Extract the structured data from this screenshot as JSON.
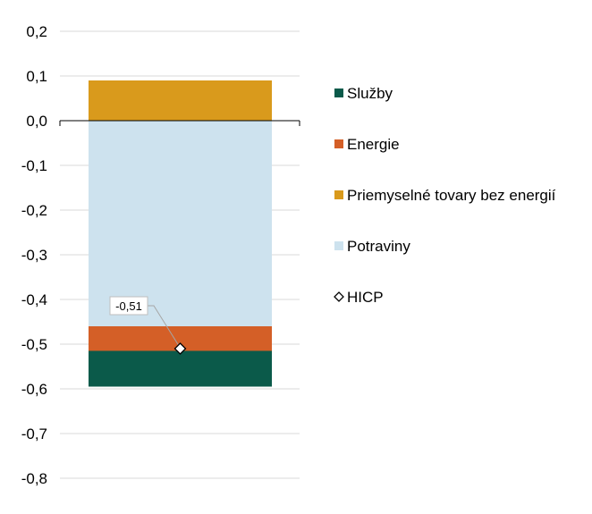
{
  "chart_data": {
    "type": "bar",
    "stacked": true,
    "ylim": [
      -0.8,
      0.2
    ],
    "ytick_step": 0.1,
    "yticks": [
      "0,2",
      "0,1",
      "0,0",
      "-0,1",
      "-0,2",
      "-0,3",
      "-0,4",
      "-0,5",
      "-0,6",
      "-0,7",
      "-0,8"
    ],
    "grid": true,
    "legend_position": "right",
    "series": [
      {
        "name": "Služby",
        "value": -0.08,
        "color": "#0b5a4a"
      },
      {
        "name": "Energie",
        "value": -0.055,
        "color": "#d45f27"
      },
      {
        "name": "Priemyselné tovary bez energií",
        "value": 0.09,
        "color": "#d99a1c"
      },
      {
        "name": "Potraviny",
        "value": -0.46,
        "color": "#cde2ee"
      }
    ],
    "stack_order_positive": [
      "Priemyselné tovary bez energií"
    ],
    "stack_order_negative": [
      "Potraviny",
      "Energie",
      "Služby"
    ],
    "hicp": {
      "name": "HICP",
      "value": -0.51,
      "label": "-0,51",
      "marker": "diamond"
    }
  }
}
